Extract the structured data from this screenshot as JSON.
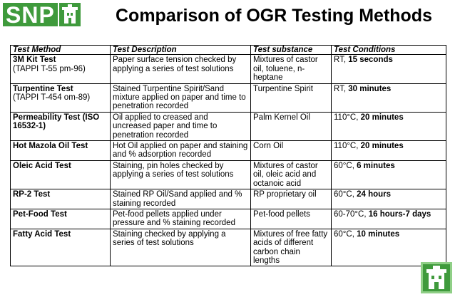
{
  "logo": {
    "text": "SNP"
  },
  "title": "Comparison of OGR Testing Methods",
  "table": {
    "headers": [
      "Test Method",
      "Test Description",
      "Test substance",
      "Test Conditions"
    ],
    "rows": [
      {
        "method": "3M Kit Test",
        "method_sub": "(TAPPI T-55 pm-96)",
        "description": "Paper surface tension checked by applying a series of test solutions",
        "substance": "Mixtures of castor oil, toluene, n-heptane",
        "cond_prefix": "RT, ",
        "cond_bold": "15 seconds"
      },
      {
        "method": "Turpentine Test",
        "method_sub": "(TAPPI T-454 om-89)",
        "description": "Stained Turpentine Spirit/Sand mixture applied on paper and time to penetration recorded",
        "substance": "Turpentine Spirit",
        "cond_prefix": "RT, ",
        "cond_bold": "30 minutes"
      },
      {
        "method": "Permeability Test (ISO 16532-1)",
        "method_sub": "",
        "description": "Oil applied to creased and uncreased paper and time to penetration recorded",
        "substance": "Palm Kernel Oil",
        "cond_prefix": "110°C, ",
        "cond_bold": "20 minutes"
      },
      {
        "method": "Hot Mazola Oil Test",
        "method_sub": "",
        "description": "Hot Oil applied on paper and staining and % adsorption recorded",
        "substance": "Corn Oil",
        "cond_prefix": "110°C, ",
        "cond_bold": "20 minutes"
      },
      {
        "method": "Oleic Acid Test",
        "method_sub": "",
        "description": "Staining, pin holes checked by applying a series of test solutions",
        "substance": "Mixtures of castor oil, oleic acid and octanoic acid",
        "cond_prefix": "60°C, ",
        "cond_bold": "6 minutes"
      },
      {
        "method": "RP-2 Test",
        "method_sub": "",
        "description": "Stained RP Oil/Sand applied and % staining recorded",
        "substance": "RP proprietary oil",
        "cond_prefix": "60°C, ",
        "cond_bold": "24 hours"
      },
      {
        "method": "Pet-Food Test",
        "method_sub": "",
        "description": "Pet-food pellets applied under pressure and % staining recorded",
        "substance": "Pet-food pellets",
        "cond_prefix": "60-70°C, ",
        "cond_bold": "16 hours-7 days"
      },
      {
        "method": "Fatty Acid Test",
        "method_sub": "",
        "description": "Staining checked by applying a series of test solutions",
        "substance": "Mixtures of free fatty acids of different carbon chain lengths",
        "cond_prefix": "60°C, ",
        "cond_bold": "10 minutes"
      }
    ]
  },
  "icons": {
    "logo_emblem": "building-icon",
    "corner_emblem": "building-icon"
  },
  "colors": {
    "brand_green": "#3f9a3c"
  }
}
